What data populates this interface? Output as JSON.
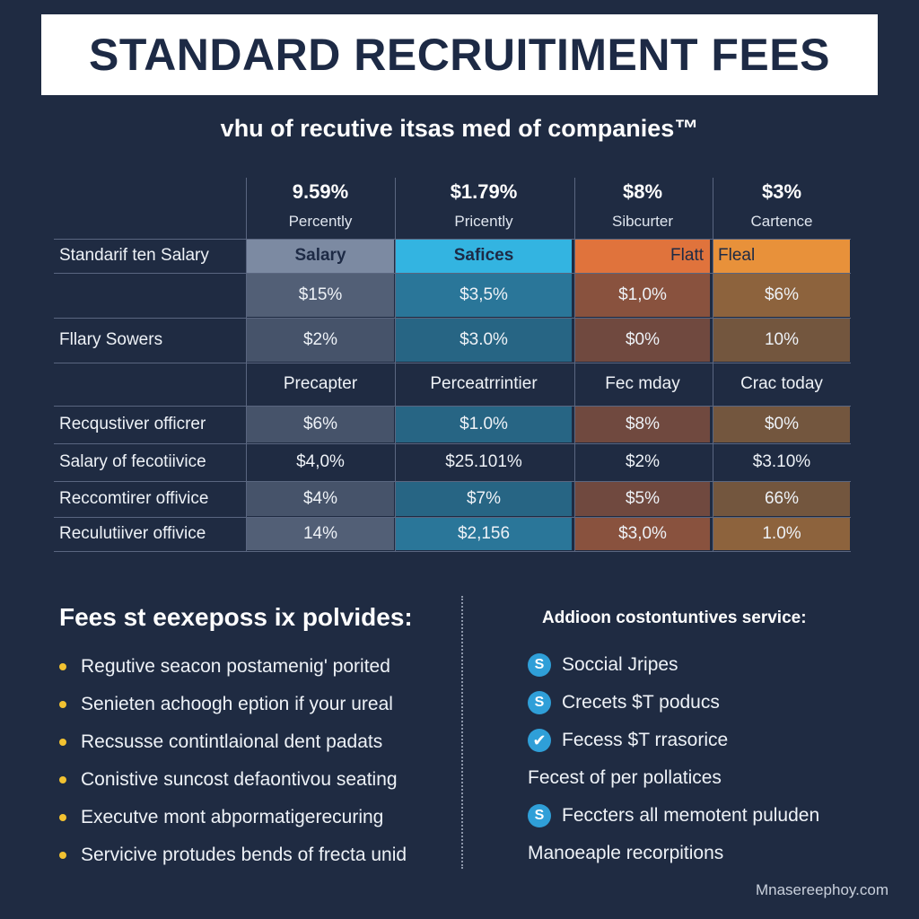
{
  "title": "STANDARD RECRUITIMENT FEES",
  "subtitle": "vhu of recutive itsas med of companies™",
  "table": {
    "columns": [
      {
        "top": "9.59%",
        "sub": "Percently",
        "band": "Salary",
        "color": "#7c8aa2"
      },
      {
        "top": "$1.79%",
        "sub": "Pricently",
        "band": "Safices",
        "color": "#33b4e1"
      },
      {
        "top": "$8%",
        "sub": "Sibcurter",
        "band": "Flatt",
        "color": "#e0733c"
      },
      {
        "top": "$3%",
        "sub": "Cartence",
        "band": "Fleal",
        "color": "#e8913a"
      }
    ],
    "band_row_label": "Standarif ten Salary",
    "rows": [
      {
        "label": "",
        "values": [
          "$15%",
          "$3,5%",
          "$1,0%",
          "$6%"
        ]
      },
      {
        "label": "Fllary Sowers",
        "values": [
          "$2%",
          "$3.0%",
          "$0%",
          "10%"
        ]
      },
      {
        "label": "",
        "values": [
          "Precapter",
          "Perceatrrintier",
          "Fec mday",
          "Crac today"
        ]
      },
      {
        "label": "Recqustiver officrer",
        "values": [
          "$6%",
          "$1.0%",
          "$8%",
          "$0%"
        ]
      },
      {
        "label": "Salary of fecotiivice",
        "values": [
          "$4,0%",
          "$25.101%",
          "$2%",
          "$3.10%"
        ]
      },
      {
        "label": "Reccomtirer offivice",
        "values": [
          "$4%",
          "$7%",
          "$5%",
          "66%"
        ]
      },
      {
        "label": "Reculutiiver offivice",
        "values": [
          "14%",
          "$2,156",
          "$3,0%",
          "1.0%"
        ]
      }
    ]
  },
  "left": {
    "title": "Fees st eexeposs ix polvides:",
    "items": [
      "Regutive seacon postamenig' porited",
      "Senieten achoogh eption if your ureal",
      "Recsusse contintlaional dent padats",
      "Conistive suncost defaontivou seating",
      "Executve mont abpormatigerecuring",
      "Servicive protudes bends of frecta unid"
    ]
  },
  "right": {
    "title": "Addioon costontuntives service:",
    "items": [
      {
        "text": "Soccial Jripes",
        "icon": "dollar-icon",
        "glyph": "S"
      },
      {
        "text": "Crecets $T poducs",
        "icon": "dollar-icon",
        "glyph": "S"
      },
      {
        "text": "Fecess $T rrasorice",
        "icon": "check-icon",
        "glyph": "✔"
      },
      {
        "text": "Fecest of per pollatices",
        "icon": "",
        "glyph": ""
      },
      {
        "text": "Feccters all memotent puluden",
        "icon": "dollar-icon",
        "glyph": "S"
      },
      {
        "text": "Manoeaple recorpitions",
        "icon": "",
        "glyph": ""
      }
    ]
  },
  "watermark": "Mnasereephoy.com",
  "colors": {
    "background": "#1f2b42",
    "title_bar": "#ffffff",
    "title_text": "#1d2a45",
    "bullet": "#f2c231",
    "icon": "#2f9fd8"
  }
}
